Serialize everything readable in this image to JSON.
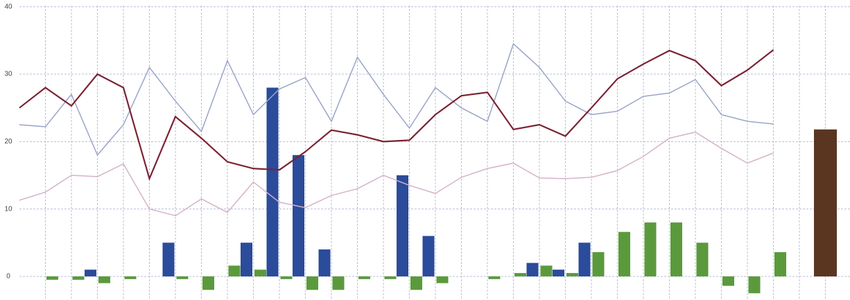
{
  "chart_data": {
    "type": "bar-line",
    "categories": [
      null,
      null,
      null,
      null,
      null,
      null,
      null,
      null,
      null,
      null,
      null,
      null,
      null,
      null,
      null,
      null,
      null,
      null,
      null,
      null,
      null,
      null,
      null,
      null,
      null,
      null,
      null,
      null,
      null,
      null,
      null,
      null
    ],
    "ylim": [
      -3.5,
      41
    ],
    "yticks": [
      0,
      10,
      20,
      30,
      40
    ],
    "grid": true,
    "series": [
      {
        "type": "bar",
        "color": "#2b4b9b",
        "values": [
          null,
          null,
          null,
          1,
          null,
          null,
          5,
          null,
          null,
          5,
          28,
          18,
          4,
          null,
          null,
          15,
          6,
          null,
          null,
          null,
          2,
          1,
          5,
          null,
          null,
          null,
          null,
          null,
          null,
          null,
          null,
          null
        ]
      },
      {
        "type": "bar",
        "color": "#5b9a3c",
        "values": [
          null,
          -0.5,
          -0.5,
          -1,
          -0.4,
          null,
          -0.4,
          -2,
          1.6,
          1,
          -0.4,
          -2,
          -2,
          -0.4,
          -0.4,
          -2,
          -1,
          null,
          -0.4,
          0.5,
          1.6,
          0.5,
          3.6,
          6.6,
          8,
          8,
          5,
          -1.4,
          -2.5,
          3.6,
          null,
          null
        ]
      },
      {
        "type": "bar",
        "color": "#5a3621",
        "values": [
          null,
          null,
          null,
          null,
          null,
          null,
          null,
          null,
          null,
          null,
          null,
          null,
          null,
          null,
          null,
          null,
          null,
          null,
          null,
          null,
          null,
          null,
          null,
          null,
          null,
          null,
          null,
          null,
          null,
          null,
          null,
          21.8
        ]
      },
      {
        "type": "line",
        "color": "#9ba5c9",
        "values": [
          22.5,
          22.2,
          27,
          18,
          22.5,
          31,
          26,
          21.5,
          32,
          24,
          27.8,
          29.5,
          23,
          32.5,
          27,
          22,
          28,
          25,
          23,
          34.5,
          31,
          26,
          24,
          24.5,
          26.7,
          27.2,
          29.2,
          24,
          23,
          22.6,
          null,
          null
        ]
      },
      {
        "type": "line",
        "color": "#d4b3ca",
        "values": [
          11.3,
          12.5,
          15,
          14.8,
          16.7,
          10,
          9,
          11.5,
          9.5,
          14,
          11,
          10.2,
          12,
          13,
          15,
          13.5,
          12.3,
          14.7,
          16,
          16.8,
          14.6,
          14.5,
          14.7,
          15.7,
          17.8,
          20.5,
          21.4,
          19,
          16.8,
          18.3,
          null,
          null
        ]
      },
      {
        "type": "line",
        "color": "#7b2233",
        "values": [
          25,
          28,
          25.3,
          30,
          28,
          14.5,
          23.7,
          20.5,
          17,
          16,
          15.8,
          18.5,
          21.7,
          21,
          20,
          20.2,
          24,
          26.8,
          27.3,
          21.8,
          22.5,
          20.8,
          25,
          29.3,
          31.5,
          33.5,
          32,
          28.3,
          30.6,
          33.6,
          null,
          null
        ]
      }
    ]
  }
}
